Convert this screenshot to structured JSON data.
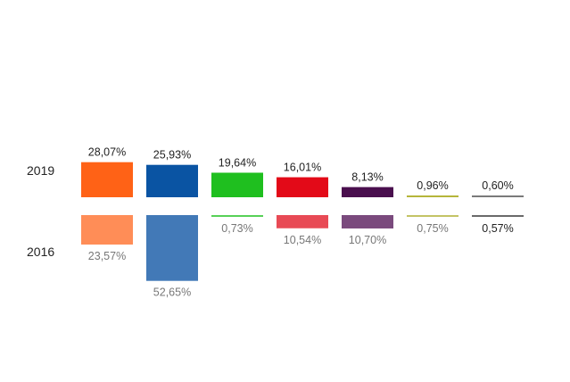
{
  "chart_data": {
    "type": "bar",
    "title": "",
    "xlabel": "",
    "ylabel": "",
    "rows": [
      "2019",
      "2016"
    ],
    "series": [
      {
        "name": "2019",
        "values": [
          28.07,
          25.93,
          19.64,
          16.01,
          8.13,
          0.96,
          0.6
        ],
        "labels": [
          "28,07%",
          "25,93%",
          "19,64%",
          "16,01%",
          "8,13%",
          "0,96%",
          "0,60%"
        ]
      },
      {
        "name": "2016",
        "values": [
          23.57,
          52.65,
          0.73,
          10.54,
          10.7,
          0.75,
          0.57
        ],
        "labels": [
          "23,57%",
          "52,65%",
          "0,73%",
          "10,54%",
          "10,70%",
          "0,75%",
          "0,57%"
        ]
      }
    ],
    "colors_2019": [
      "#ff6216",
      "#0a54a3",
      "#1fbf1f",
      "#e30a18",
      "#4a0f4e",
      "#b5b53a",
      "#7a7a7a"
    ],
    "colors_2016": [
      "#ff8d57",
      "#4279b7",
      "#57d157",
      "#e84a55",
      "#7a4a7d",
      "#c4c466",
      "#6a6a6a"
    ],
    "label_color_2019": "#222222",
    "label_color_2016": "#777777",
    "label_color_2016_highlight": "#222222"
  }
}
